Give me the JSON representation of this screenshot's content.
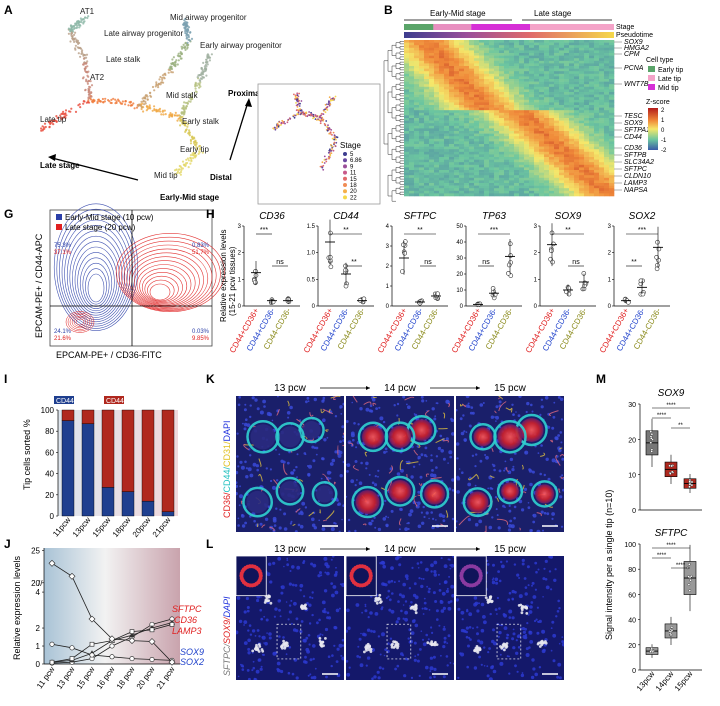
{
  "panels": {
    "A": {
      "letter": "A",
      "labels": [
        "AT1",
        "Late airway progenitor",
        "Mid airway progenitor",
        "Early airway progenitor",
        "AT2",
        "Late stalk",
        "Mid stalk",
        "Early stalk",
        "Late tip",
        "Early tip",
        "Mid tip"
      ],
      "arrow_labels": [
        "Late stage",
        "Early-Mid stage",
        "Proximal",
        "Distal"
      ],
      "inset": {
        "legend_title": "Stage",
        "values": [
          "5",
          "6.86",
          "9",
          "11",
          "15",
          "18",
          "20",
          "22"
        ],
        "colors": [
          "#3d3d8f",
          "#6a4aa0",
          "#9a4f9a",
          "#c85a8a",
          "#e06a6a",
          "#f08c55",
          "#f5b04a",
          "#f5d84a"
        ]
      }
    },
    "B": {
      "letter": "B",
      "stage_labels": [
        "Early-Mid stage",
        "Late stage"
      ],
      "bar_labels": [
        "Stage",
        "Pseudotime"
      ],
      "genes_top": [
        "SOX9",
        "HMGA2",
        "CPM",
        "PCNA",
        "WNT7B"
      ],
      "genes_bottom": [
        "TESC",
        "SOX9",
        "SFTPA1",
        "CD44",
        "CD36",
        "SFTPB",
        "SLC34A2",
        "SFTPC",
        "CLDN10",
        "LAMP3",
        "NAPSA"
      ],
      "legend": {
        "title": "Cell type",
        "items": [
          {
            "label": "Early tip",
            "color": "#5aa469"
          },
          {
            "label": "Late tip",
            "color": "#f4a3c8"
          },
          {
            "label": "Mid tip",
            "color": "#d62fd6"
          }
        ]
      },
      "zscore": {
        "title": "Z-score",
        "ticks": [
          "2",
          "1",
          "0",
          "-1",
          "-2"
        ]
      }
    },
    "G": {
      "letter": "G",
      "legend": [
        {
          "label": "Early-Mid stage (10 pcw)",
          "color": "#2b3fa8"
        },
        {
          "label": "Late stage (20 pcw)",
          "color": "#e02020"
        }
      ],
      "ylabel": "EPCAM-PE+ / CD44-APC",
      "xlabel": "EPCAM-PE+ / CD36-FITC",
      "quadrants": [
        {
          "blue": "75.3%",
          "red": "37.1%"
        },
        {
          "blue": "0.83%",
          "red": "51.7%"
        },
        {
          "blue": "24.1%",
          "red": "21.6%"
        },
        {
          "blue": "0.03%",
          "red": "9.85%"
        }
      ]
    },
    "H": {
      "letter": "H",
      "ylabel_lines": [
        "Relative expression levels",
        "(15-21 pcw tissues)"
      ],
      "groups": [
        "CD44+CD36+",
        "CD44+CD36-",
        "CD44-CD36-"
      ],
      "group_colors": [
        "#e02020",
        "#2244cc",
        "#8a8a1a"
      ],
      "charts": [
        {
          "gene": "CD36",
          "ticks": [
            "0",
            "1",
            "2",
            "3"
          ],
          "means": [
            1.25,
            0.2,
            0.2
          ],
          "sig": [
            {
              "text": "***",
              "between": [
                0,
                1
              ],
              "level": 1
            },
            {
              "text": "ns",
              "between": [
                1,
                2
              ],
              "level": 0
            }
          ]
        },
        {
          "gene": "CD44",
          "ticks": [
            "0",
            "0.5",
            "1.0",
            "1.5"
          ],
          "means": [
            1.2,
            0.6,
            0.1
          ],
          "sig": [
            {
              "text": "**",
              "between": [
                0,
                2
              ],
              "level": 1
            },
            {
              "text": "**",
              "between": [
                1,
                2
              ],
              "level": 0
            }
          ]
        },
        {
          "gene": "SFTPC",
          "ticks": [
            "0",
            "1",
            "2",
            "3",
            "4"
          ],
          "means": [
            2.4,
            0.2,
            0.5
          ],
          "sig": [
            {
              "text": "**",
              "between": [
                0,
                2
              ],
              "level": 1
            },
            {
              "text": "ns",
              "between": [
                1,
                2
              ],
              "level": 0
            }
          ]
        },
        {
          "gene": "TP63",
          "ticks": [
            "0",
            "10",
            "20",
            "30",
            "40",
            "50"
          ],
          "means": [
            1,
            8,
            31
          ],
          "sig": [
            {
              "text": "***",
              "between": [
                0,
                2
              ],
              "level": 1
            },
            {
              "text": "ns",
              "between": [
                0,
                1
              ],
              "level": 0
            }
          ]
        },
        {
          "gene": "SOX9",
          "ticks": [
            "0",
            "1",
            "2",
            "3"
          ],
          "means": [
            2.3,
            0.6,
            0.9
          ],
          "sig": [
            {
              "text": "**",
              "between": [
                0,
                2
              ],
              "level": 1
            },
            {
              "text": "ns",
              "between": [
                1,
                2
              ],
              "level": 0
            }
          ]
        },
        {
          "gene": "SOX2",
          "ticks": [
            "0",
            "1",
            "2",
            "3"
          ],
          "means": [
            0.2,
            0.7,
            2.2
          ],
          "sig": [
            {
              "text": "***",
              "between": [
                0,
                2
              ],
              "level": 1
            },
            {
              "text": "**",
              "between": [
                0,
                1
              ],
              "level": 0
            }
          ]
        }
      ]
    },
    "I": {
      "letter": "I",
      "legend": [
        {
          "label": "CD44+CD36-",
          "color": "#1f3f8f"
        },
        {
          "label": "CD44+CD36+",
          "color": "#b0281e"
        }
      ],
      "ylabel": "Tip cells sorted %",
      "yticks": [
        "0",
        "20",
        "40",
        "60",
        "80",
        "100"
      ]
    },
    "J": {
      "letter": "J",
      "ylabel": "Relative expression levels",
      "yticks": [
        "0",
        "1",
        "2",
        "4",
        "20",
        "25"
      ],
      "genes_red": [
        "SFTPC",
        "CD36",
        "LAMP3"
      ],
      "genes_blue": [
        "SOX9",
        "SOX2"
      ]
    },
    "K": {
      "letter": "K",
      "timepoints": [
        "13 pcw",
        "14 pcw",
        "15 pcw"
      ],
      "stain_parts": [
        {
          "text": "CD36/",
          "color": "#e02020"
        },
        {
          "text": "CD44/",
          "color": "#22c0c0"
        },
        {
          "text": "CD31/",
          "color": "#e0c020"
        },
        {
          "text": "DAPI",
          "color": "#2233dd"
        }
      ]
    },
    "L": {
      "letter": "L",
      "timepoints": [
        "13 pcw",
        "14 pcw",
        "15 pcw"
      ],
      "stain_parts": [
        {
          "text": "SFTPC/",
          "color": "#777777"
        },
        {
          "text": "SOX9/",
          "color": "#e02020"
        },
        {
          "text": "DAPI",
          "color": "#2233dd"
        }
      ]
    },
    "M": {
      "letter": "M",
      "ylabel": "Signal intensity per a single tip (n=10)",
      "top": {
        "gene": "SOX9",
        "ticks": [
          "0",
          "10",
          "20",
          "30"
        ],
        "medians": [
          19,
          11.5,
          7.5
        ],
        "colors": [
          "#777777",
          "#b0281e",
          "#b0281e"
        ],
        "sig": [
          "****",
          "****",
          "**"
        ]
      },
      "bottom": {
        "gene": "SFTPC",
        "ticks": [
          "0",
          "20",
          "40",
          "60",
          "80",
          "100"
        ],
        "medians": [
          15,
          31,
          73
        ],
        "colors": [
          "#999999",
          "#999999",
          "#999999"
        ],
        "sig": [
          "****",
          "****",
          "****"
        ]
      },
      "xlabels": [
        "13pcw",
        "14pcw",
        "15pcw"
      ]
    }
  },
  "chart_data": [
    {
      "type": "bar",
      "title": "",
      "ylabel": "Tip cells sorted %",
      "categories": [
        "11pcw",
        "13pcw",
        "15pcw",
        "18pcw",
        "20pcw",
        "21pcw"
      ],
      "series": [
        {
          "name": "CD44+CD36-",
          "values": [
            90,
            87,
            27,
            23,
            14,
            4
          ]
        },
        {
          "name": "CD44+CD36+",
          "values": [
            10,
            13,
            73,
            77,
            86,
            96
          ]
        }
      ],
      "ylim": [
        0,
        100
      ]
    },
    {
      "type": "line",
      "ylabel": "Relative expression levels",
      "categories": [
        "11 pcw",
        "13 pcw",
        "15 pcw",
        "16 pcw",
        "18 pcw",
        "20 pcw",
        "21 pcw"
      ],
      "series": [
        {
          "name": "SFTPC",
          "values": [
            0.05,
            0.1,
            0.3,
            1.0,
            1.5,
            2.2,
            2.5
          ]
        },
        {
          "name": "CD36",
          "values": [
            0.1,
            0.2,
            0.6,
            1.3,
            1.6,
            2.0,
            2.3
          ]
        },
        {
          "name": "LAMP3",
          "values": [
            0.1,
            0.3,
            1.1,
            1.3,
            1.8,
            1.9,
            2.2
          ]
        },
        {
          "name": "SOX9",
          "values": [
            1.1,
            0.9,
            0.5,
            0.4,
            0.3,
            0.25,
            0.2
          ]
        },
        {
          "name": "SOX2",
          "values": [
            23,
            21,
            2.5,
            1.4,
            1.3,
            1.25,
            0.1
          ]
        }
      ]
    }
  ]
}
